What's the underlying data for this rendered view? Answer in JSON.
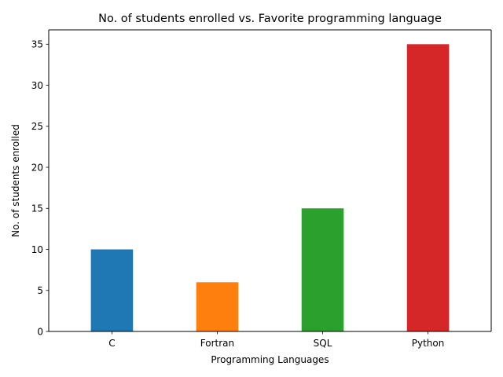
{
  "chart_data": {
    "type": "bar",
    "title": "No. of students enrolled  vs. Favorite programming language",
    "xlabel": "Programming Languages",
    "ylabel": "No. of students enrolled",
    "categories": [
      "C",
      "Fortran",
      "SQL",
      "Python"
    ],
    "values": [
      10,
      6,
      15,
      35
    ],
    "colors": [
      "#1f77b4",
      "#ff7f0e",
      "#2ca02c",
      "#d62728"
    ],
    "ylim": [
      0,
      36.75
    ],
    "yticks": [
      0,
      5,
      10,
      15,
      20,
      25,
      30,
      35
    ],
    "grid": false,
    "legend": "none"
  }
}
